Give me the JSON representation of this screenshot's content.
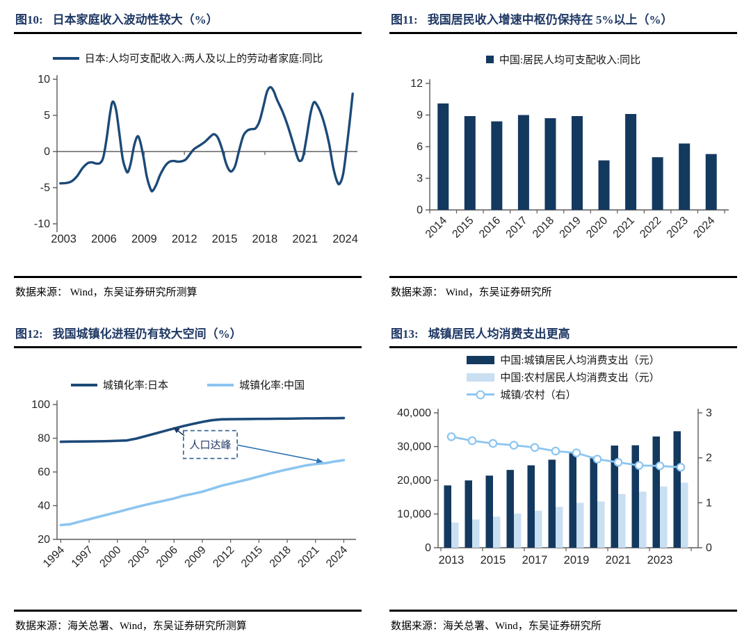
{
  "colors": {
    "navy": "#1C4A78",
    "navy_bar": "#14395F",
    "sky": "#8CC5F0",
    "pale": "#C9DFF2",
    "ratio_line": "#8CC5F0",
    "title": "#1F3864",
    "axis": "#595959",
    "tick_label": "#262626",
    "annotation_border": "#2E5F8F",
    "arrow_dark": "#1F3864",
    "arrow_blue": "#2E75B6"
  },
  "figures": [
    {
      "label": "图10:",
      "title": "日本家庭收入波动性较大（%）",
      "source": "数据来源： Wind，东吴证券研究所测算"
    },
    {
      "label": "图11:",
      "title": "我国居民收入增速中枢仍保持在 5%以上（%）",
      "source": "数据来源： Wind，东吴证券研究所"
    },
    {
      "label": "图12:",
      "title": "我国城镇化进程仍有较大空间（%）",
      "source": "数据来源：海关总署、Wind，东吴证券研究所测算"
    },
    {
      "label": "图13:",
      "title": "城镇居民人均消费支出更高",
      "source": "数据来源：海关总署、Wind，东吴证券研究所"
    }
  ],
  "chart_data": [
    {
      "id": "fig10",
      "type": "wiggle-line",
      "title": "日本家庭收入波动性较大（%）",
      "ylim": [
        -10,
        10
      ],
      "yticks": [
        -10,
        -5,
        0,
        5,
        10
      ],
      "xlim": [
        2002.5,
        2024.8
      ],
      "xticks": [
        2003,
        2006,
        2009,
        2012,
        2015,
        2018,
        2021,
        2024
      ],
      "zero_axis": true,
      "legend_position": "top",
      "series": [
        {
          "name": "日本:人均可支配收入:两人及以上的劳动者家庭:同比",
          "color": "#1C4A78",
          "points": [
            [
              2002.75,
              -4.4
            ],
            [
              2003.2,
              -4.35
            ],
            [
              2003.6,
              -4.1
            ],
            [
              2004,
              -3.4
            ],
            [
              2004.4,
              -2.3
            ],
            [
              2004.8,
              -1.6
            ],
            [
              2005.1,
              -1.5
            ],
            [
              2005.4,
              -1.65
            ],
            [
              2005.7,
              -1.6
            ],
            [
              2005.95,
              -0.8
            ],
            [
              2006.2,
              1.8
            ],
            [
              2006.45,
              5.2
            ],
            [
              2006.65,
              6.9
            ],
            [
              2006.9,
              5.8
            ],
            [
              2007.15,
              2.5
            ],
            [
              2007.4,
              -1.0
            ],
            [
              2007.65,
              -2.6
            ],
            [
              2007.8,
              -2.8
            ],
            [
              2008.0,
              -1.6
            ],
            [
              2008.25,
              0.8
            ],
            [
              2008.5,
              2.1
            ],
            [
              2008.7,
              1.4
            ],
            [
              2008.95,
              -0.8
            ],
            [
              2009.2,
              -3.5
            ],
            [
              2009.5,
              -5.3
            ],
            [
              2009.65,
              -5.4
            ],
            [
              2009.9,
              -4.6
            ],
            [
              2010.2,
              -3.2
            ],
            [
              2010.6,
              -1.9
            ],
            [
              2010.9,
              -1.4
            ],
            [
              2011.2,
              -1.3
            ],
            [
              2011.5,
              -1.4
            ],
            [
              2011.8,
              -1.35
            ],
            [
              2012.1,
              -1.1
            ],
            [
              2012.4,
              -0.4
            ],
            [
              2012.7,
              0.3
            ],
            [
              2013.1,
              0.8
            ],
            [
              2013.5,
              1.3
            ],
            [
              2013.9,
              2.0
            ],
            [
              2014.2,
              2.4
            ],
            [
              2014.5,
              1.9
            ],
            [
              2014.8,
              0.4
            ],
            [
              2015.1,
              -1.6
            ],
            [
              2015.35,
              -2.6
            ],
            [
              2015.55,
              -2.7
            ],
            [
              2015.8,
              -1.9
            ],
            [
              2016.1,
              0.3
            ],
            [
              2016.4,
              2.2
            ],
            [
              2016.7,
              2.9
            ],
            [
              2017.0,
              3.1
            ],
            [
              2017.3,
              3.2
            ],
            [
              2017.6,
              4.2
            ],
            [
              2017.9,
              6.3
            ],
            [
              2018.15,
              8.2
            ],
            [
              2018.4,
              8.9
            ],
            [
              2018.65,
              8.4
            ],
            [
              2018.9,
              7.2
            ],
            [
              2019.3,
              5.6
            ],
            [
              2019.7,
              3.6
            ],
            [
              2020.1,
              1.2
            ],
            [
              2020.45,
              -0.9
            ],
            [
              2020.65,
              -1.3
            ],
            [
              2020.85,
              -0.7
            ],
            [
              2021.1,
              1.8
            ],
            [
              2021.4,
              5.2
            ],
            [
              2021.65,
              6.8
            ],
            [
              2021.9,
              6.4
            ],
            [
              2022.2,
              5.2
            ],
            [
              2022.5,
              3.4
            ],
            [
              2022.8,
              1.0
            ],
            [
              2023.1,
              -2.2
            ],
            [
              2023.4,
              -4.2
            ],
            [
              2023.6,
              -4.4
            ],
            [
              2023.85,
              -3.0
            ],
            [
              2024.1,
              0.5
            ],
            [
              2024.35,
              4.5
            ],
            [
              2024.55,
              8.0
            ]
          ]
        }
      ]
    },
    {
      "id": "fig11",
      "type": "bar",
      "title": "我国居民收入增速中枢仍保持在 5%以上（%）",
      "legend_position": "top",
      "categories": [
        "2014",
        "2015",
        "2016",
        "2017",
        "2018",
        "2019",
        "2020",
        "2021",
        "2022",
        "2023",
        "2024"
      ],
      "series": [
        {
          "name": "中国:居民人均可支配收入:同比",
          "color": "#14395F",
          "values": [
            10.1,
            8.9,
            8.4,
            9.0,
            8.7,
            8.9,
            4.7,
            9.1,
            5.0,
            6.3,
            5.3
          ]
        }
      ],
      "ylim": [
        0,
        12
      ],
      "yticks": [
        0,
        3,
        6,
        9,
        12
      ],
      "rotate_labels": true
    },
    {
      "id": "fig12",
      "type": "line",
      "title": "我国城镇化进程仍有较大空间（%）",
      "legend_position": "top",
      "ylim": [
        20,
        100
      ],
      "yticks": [
        20,
        40,
        60,
        80,
        100
      ],
      "xlim": [
        1993.6,
        2025.0
      ],
      "xticks": [
        1994,
        1997,
        2000,
        2003,
        2006,
        2009,
        2012,
        2015,
        2018,
        2021,
        2024
      ],
      "rotate_labels": true,
      "series": [
        {
          "name": "城镇化率:日本",
          "color": "#1C4A78",
          "points": [
            [
              1994,
              77.9
            ],
            [
              1995,
              78.0
            ],
            [
              1996,
              78.05
            ],
            [
              1997,
              78.1
            ],
            [
              1998,
              78.2
            ],
            [
              1999,
              78.3
            ],
            [
              2000,
              78.5
            ],
            [
              2001,
              78.7
            ],
            [
              2002,
              79.8
            ],
            [
              2003,
              81.3
            ],
            [
              2004,
              82.8
            ],
            [
              2005,
              84.3
            ],
            [
              2006,
              85.8
            ],
            [
              2007,
              87.2
            ],
            [
              2008,
              88.5
            ],
            [
              2009,
              89.7
            ],
            [
              2010,
              90.7
            ],
            [
              2011,
              91.2
            ],
            [
              2012,
              91.3
            ],
            [
              2013,
              91.35
            ],
            [
              2014,
              91.4
            ],
            [
              2015,
              91.5
            ],
            [
              2016,
              91.5
            ],
            [
              2017,
              91.6
            ],
            [
              2018,
              91.6
            ],
            [
              2019,
              91.7
            ],
            [
              2020,
              91.8
            ],
            [
              2021,
              91.8
            ],
            [
              2022,
              91.9
            ],
            [
              2023,
              91.9
            ],
            [
              2024,
              92.0
            ]
          ]
        },
        {
          "name": "城镇化率:中国",
          "color": "#8CC5F0",
          "points": [
            [
              1994,
              28.5
            ],
            [
              1995,
              29.0
            ],
            [
              1996,
              30.5
            ],
            [
              1997,
              31.9
            ],
            [
              1998,
              33.4
            ],
            [
              1999,
              34.8
            ],
            [
              2000,
              36.2
            ],
            [
              2001,
              37.7
            ],
            [
              2002,
              39.1
            ],
            [
              2003,
              40.5
            ],
            [
              2004,
              41.8
            ],
            [
              2005,
              43.0
            ],
            [
              2006,
              44.3
            ],
            [
              2007,
              45.9
            ],
            [
              2008,
              47.0
            ],
            [
              2009,
              48.3
            ],
            [
              2010,
              50.0
            ],
            [
              2011,
              51.8
            ],
            [
              2012,
              53.1
            ],
            [
              2013,
              54.5
            ],
            [
              2014,
              55.8
            ],
            [
              2015,
              57.3
            ],
            [
              2016,
              58.8
            ],
            [
              2017,
              60.2
            ],
            [
              2018,
              61.5
            ],
            [
              2019,
              62.7
            ],
            [
              2020,
              63.9
            ],
            [
              2021,
              64.7
            ],
            [
              2022,
              65.2
            ],
            [
              2023,
              66.2
            ],
            [
              2024,
              67.0
            ]
          ]
        }
      ],
      "annotation": {
        "text": "人口达峰",
        "box": {
          "x1": 2007.0,
          "x2": 2012.7,
          "y1": 68.0,
          "y2": 84.5
        },
        "arrows": [
          {
            "from": [
              2007.1,
              81.5
            ],
            "to": [
              2005.9,
              86.6
            ],
            "color": "#1F3864"
          },
          {
            "from": [
              2012.7,
              76.0
            ],
            "to": [
              2021.8,
              66.0
            ],
            "color": "#2E75B6"
          }
        ]
      }
    },
    {
      "id": "fig13",
      "type": "combo",
      "title": "城镇居民人均消费支出更高",
      "legend_position": "top",
      "categories": [
        "2013",
        "2014",
        "2015",
        "2016",
        "2017",
        "2018",
        "2019",
        "2020",
        "2021",
        "2022",
        "2023",
        "2024"
      ],
      "bar_series": [
        {
          "name": "中国:城镇居民人均消费支出（元）",
          "color": "#14395F",
          "values": [
            18488,
            19968,
            21392,
            23079,
            24445,
            26112,
            28063,
            27007,
            30307,
            30391,
            32994,
            34557
          ]
        },
        {
          "name": "中国:农村居民人均消费支出（元）",
          "color": "#C9DFF2",
          "values": [
            7485,
            8383,
            9223,
            10130,
            10955,
            12124,
            13328,
            13713,
            15916,
            16632,
            18175,
            19280
          ]
        }
      ],
      "line_series": {
        "name": "城镇/农村（右）",
        "color": "#8CC5F0",
        "axis": "right",
        "values": [
          2.47,
          2.38,
          2.32,
          2.28,
          2.23,
          2.15,
          2.11,
          1.97,
          1.9,
          1.83,
          1.82,
          1.79
        ]
      },
      "ylim_left": [
        0,
        40000
      ],
      "yticks_left": [
        0,
        10000,
        20000,
        30000,
        40000
      ],
      "ylim_right": [
        0,
        3
      ],
      "yticks_right": [
        0,
        1,
        2,
        3
      ],
      "xtick_labels": [
        "2013",
        "2015",
        "2017",
        "2019",
        "2021",
        "2023"
      ]
    }
  ]
}
